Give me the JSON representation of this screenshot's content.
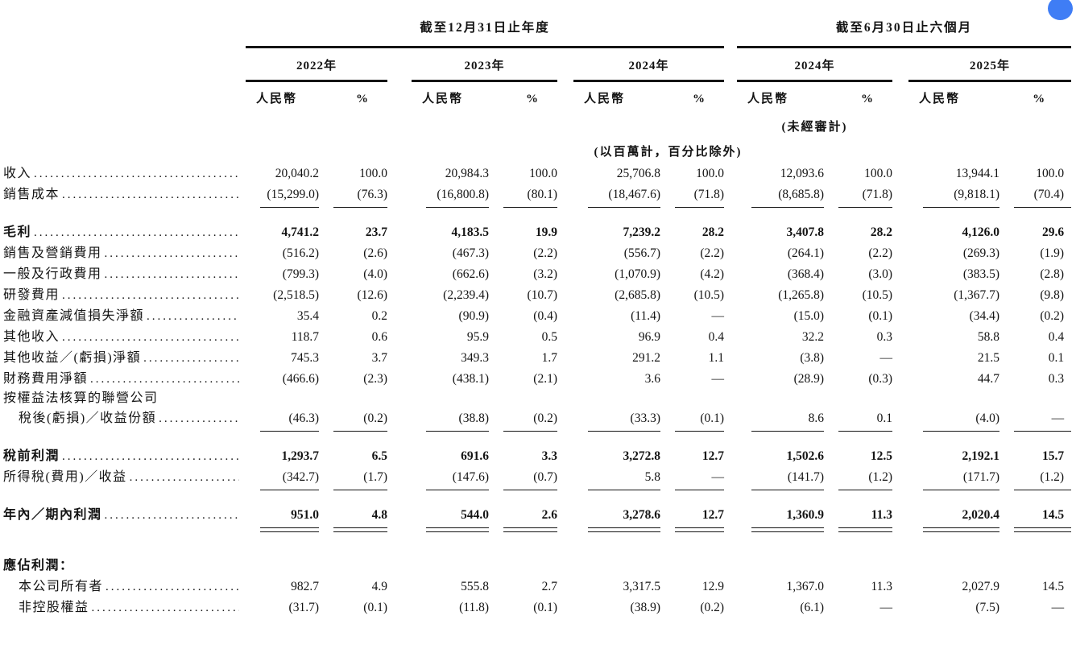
{
  "widget": {
    "floating_button_color": "#3f7df5"
  },
  "table": {
    "sections": {
      "annual": {
        "title": "截至12月31日止年度",
        "years": [
          "2022年",
          "2023年",
          "2024年"
        ]
      },
      "interim": {
        "title": "截至6月30日止六個月",
        "years": [
          "2024年",
          "2025年"
        ]
      }
    },
    "col_headers": {
      "currency": "人民幣",
      "percent": "%"
    },
    "unaudited_note": "(未經審計)",
    "units_note": "(以百萬計，百分比除外)",
    "rows": [
      {
        "label": "收入",
        "values": [
          "20,040.2",
          "100.0",
          "20,984.3",
          "100.0",
          "25,706.8",
          "100.0",
          "12,093.6",
          "100.0",
          "13,944.1",
          "100.0"
        ]
      },
      {
        "label": "銷售成本",
        "values": [
          "(15,299.0)",
          "(76.3)",
          "(16,800.8)",
          "(80.1)",
          "(18,467.6)",
          "(71.8)",
          "(8,685.8)",
          "(71.8)",
          "(9,818.1)",
          "(70.4)"
        ],
        "rule_below": "single"
      },
      {
        "label": "毛利",
        "bold": true,
        "tall": true,
        "values": [
          "4,741.2",
          "23.7",
          "4,183.5",
          "19.9",
          "7,239.2",
          "28.2",
          "3,407.8",
          "28.2",
          "4,126.0",
          "29.6"
        ]
      },
      {
        "label": "銷售及營銷費用",
        "values": [
          "(516.2)",
          "(2.6)",
          "(467.3)",
          "(2.2)",
          "(556.7)",
          "(2.2)",
          "(264.1)",
          "(2.2)",
          "(269.3)",
          "(1.9)"
        ]
      },
      {
        "label": "一般及行政費用",
        "values": [
          "(799.3)",
          "(4.0)",
          "(662.6)",
          "(3.2)",
          "(1,070.9)",
          "(4.2)",
          "(368.4)",
          "(3.0)",
          "(383.5)",
          "(2.8)"
        ]
      },
      {
        "label": "研發費用",
        "values": [
          "(2,518.5)",
          "(12.6)",
          "(2,239.4)",
          "(10.7)",
          "(2,685.8)",
          "(10.5)",
          "(1,265.8)",
          "(10.5)",
          "(1,367.7)",
          "(9.8)"
        ]
      },
      {
        "label": "金融資產減值損失淨額",
        "values": [
          "35.4",
          "0.2",
          "(90.9)",
          "(0.4)",
          "(11.4)",
          "—",
          "(15.0)",
          "(0.1)",
          "(34.4)",
          "(0.2)"
        ]
      },
      {
        "label": "其他收入",
        "values": [
          "118.7",
          "0.6",
          "95.9",
          "0.5",
          "96.9",
          "0.4",
          "32.2",
          "0.3",
          "58.8",
          "0.4"
        ]
      },
      {
        "label": "其他收益／(虧損)淨額",
        "values": [
          "745.3",
          "3.7",
          "349.3",
          "1.7",
          "291.2",
          "1.1",
          "(3.8)",
          "—",
          "21.5",
          "0.1"
        ]
      },
      {
        "label": "財務費用淨額",
        "values": [
          "(466.6)",
          "(2.3)",
          "(438.1)",
          "(2.1)",
          "3.6",
          "—",
          "(28.9)",
          "(0.3)",
          "44.7",
          "0.3"
        ]
      },
      {
        "label": "按權益法核算的聯營公司",
        "continuation": true,
        "values": null
      },
      {
        "label": "稅後(虧損)／收益份額",
        "indent": 1,
        "values": [
          "(46.3)",
          "(0.2)",
          "(38.8)",
          "(0.2)",
          "(33.3)",
          "(0.1)",
          "8.6",
          "0.1",
          "(4.0)",
          "—"
        ],
        "rule_below": "single"
      },
      {
        "label": "稅前利潤",
        "bold": true,
        "tall": true,
        "values": [
          "1,293.7",
          "6.5",
          "691.6",
          "3.3",
          "3,272.8",
          "12.7",
          "1,502.6",
          "12.5",
          "2,192.1",
          "15.7"
        ]
      },
      {
        "label": "所得稅(費用)／收益",
        "values": [
          "(342.7)",
          "(1.7)",
          "(147.6)",
          "(0.7)",
          "5.8",
          "—",
          "(141.7)",
          "(1.2)",
          "(171.7)",
          "(1.2)"
        ],
        "rule_below": "single"
      },
      {
        "label": "年內／期內利潤",
        "bold": true,
        "tall": true,
        "values": [
          "951.0",
          "4.8",
          "544.0",
          "2.6",
          "3,278.6",
          "12.7",
          "1,360.9",
          "11.3",
          "2,020.4",
          "14.5"
        ],
        "rule_below": "double"
      },
      {
        "label": "應佔利潤：",
        "bold": true,
        "gap_above": true,
        "values": null
      },
      {
        "label": "本公司所有者",
        "indent": 1,
        "values": [
          "982.7",
          "4.9",
          "555.8",
          "2.7",
          "3,317.5",
          "12.9",
          "1,367.0",
          "11.3",
          "2,027.9",
          "14.5"
        ]
      },
      {
        "label": "非控股權益",
        "indent": 1,
        "values": [
          "(31.7)",
          "(0.1)",
          "(11.8)",
          "(0.1)",
          "(38.9)",
          "(0.2)",
          "(6.1)",
          "—",
          "(7.5)",
          "—"
        ]
      }
    ]
  }
}
